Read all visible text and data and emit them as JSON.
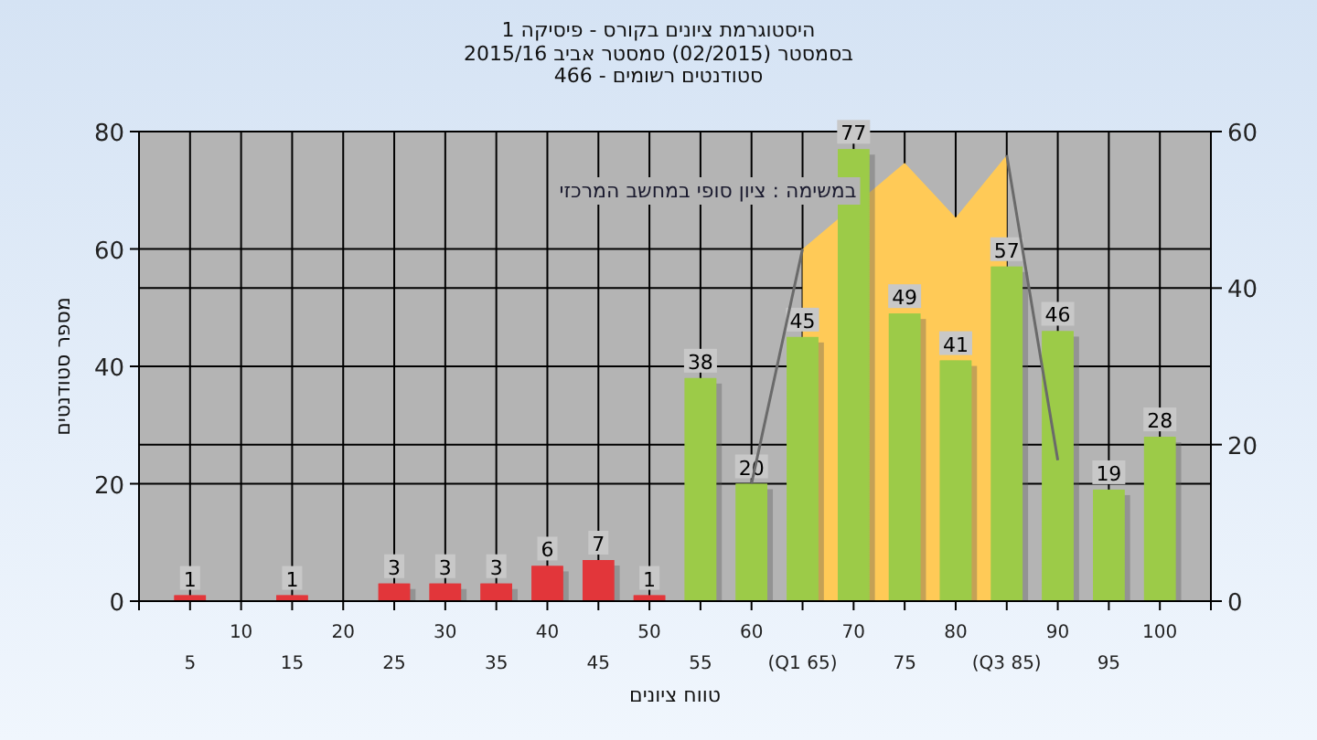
{
  "chart_data": {
    "type": "bar",
    "title": "היסטוגרמת ציונים בקורס - פיסיקה 1",
    "subtitle": "בסמסטר  (02/2015)  סמסטר אביב 2015/16\nסטודנטים רשומים - 466",
    "xlabel": "טווח ציונים",
    "ylabel": "מספר סטודנטים",
    "annotations": [
      "במשימה : ציון סופי במחשב המרכזי"
    ],
    "categories": [
      "5",
      "10",
      "15",
      "20",
      "25",
      "30",
      "35",
      "40",
      "45",
      "50",
      "55",
      "60",
      "(Q1 65)",
      "70",
      "75",
      "80",
      "(Q3 85)",
      "90",
      "95",
      "100"
    ],
    "ylim": [
      0,
      80
    ],
    "yticks": [
      0,
      20,
      40,
      60,
      80
    ],
    "y2lim": [
      0,
      60
    ],
    "y2ticks": [
      0,
      20,
      40,
      60
    ],
    "grid": true,
    "legend": false,
    "series": [
      {
        "type": "area",
        "axis": "y2",
        "color": "#ffca57",
        "values": [
          null,
          null,
          null,
          null,
          null,
          null,
          null,
          null,
          null,
          null,
          null,
          null,
          45,
          null,
          56,
          49,
          57,
          null,
          null,
          null
        ]
      },
      {
        "colors": [
          "#e2363a",
          "#e2363a",
          "#e2363a",
          "#e2363a",
          "#e2363a",
          "#e2363a",
          "#e2363a",
          "#e2363a",
          "#e2363a",
          "#e2363a",
          "#9ccb48",
          "#9ccb48",
          "#9ccb48",
          "#9ccb48",
          "#9ccb48",
          "#9ccb48",
          "#9ccb48",
          "#9ccb48",
          "#9ccb48",
          "#9ccb48"
        ],
        "values": [
          1,
          0,
          1,
          0,
          3,
          3,
          3,
          6,
          7,
          1,
          38,
          20,
          45,
          77,
          49,
          41,
          57,
          46,
          19,
          28
        ],
        "value_labels": [
          "1",
          null,
          "1",
          null,
          "3",
          "3",
          "3",
          "6",
          "7",
          "1",
          "38",
          "20",
          "45",
          "77",
          "49",
          "41",
          "57",
          "46",
          "19",
          "28"
        ]
      },
      {
        "type": "line",
        "axis": "y2",
        "color": "#6a6a6a",
        "values": [
          null,
          null,
          null,
          null,
          null,
          null,
          null,
          null,
          null,
          null,
          null,
          15,
          45,
          null,
          null,
          null,
          57,
          18,
          null,
          null
        ]
      }
    ]
  }
}
